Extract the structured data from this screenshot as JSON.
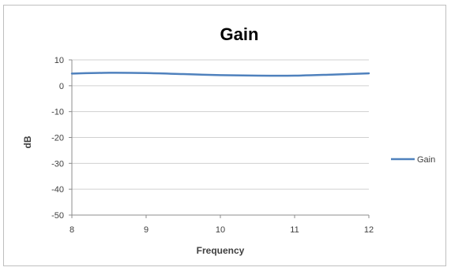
{
  "chart_data": {
    "type": "line",
    "title": "Gain",
    "xlabel": "Frequency",
    "ylabel": "dB",
    "xlim": [
      8,
      12
    ],
    "ylim": [
      -50,
      10
    ],
    "x_ticks": [
      8,
      9,
      10,
      11,
      12
    ],
    "y_ticks": [
      10,
      0,
      -10,
      -20,
      -30,
      -40,
      -50
    ],
    "grid": true,
    "legend_position": "right",
    "series": [
      {
        "name": "Gain",
        "color": "#4f81bd",
        "x": [
          8,
          8.5,
          9,
          9.5,
          10,
          10.5,
          11,
          11.5,
          12
        ],
        "y": [
          4.7,
          5.0,
          4.9,
          4.5,
          4.1,
          3.9,
          3.9,
          4.3,
          4.8
        ]
      }
    ]
  }
}
